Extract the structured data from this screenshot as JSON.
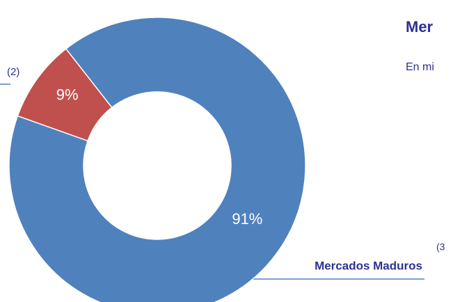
{
  "chart_data": {
    "type": "donut",
    "title": "Mer",
    "subtitle": "En mi",
    "categories": [
      "Mercados Maduros",
      null
    ],
    "values": [
      91,
      9
    ],
    "value_labels": [
      "91%",
      "9%"
    ],
    "colors": [
      "#4f81bd",
      "#c0504d"
    ],
    "annotations": [
      "(2)",
      "(3"
    ]
  }
}
